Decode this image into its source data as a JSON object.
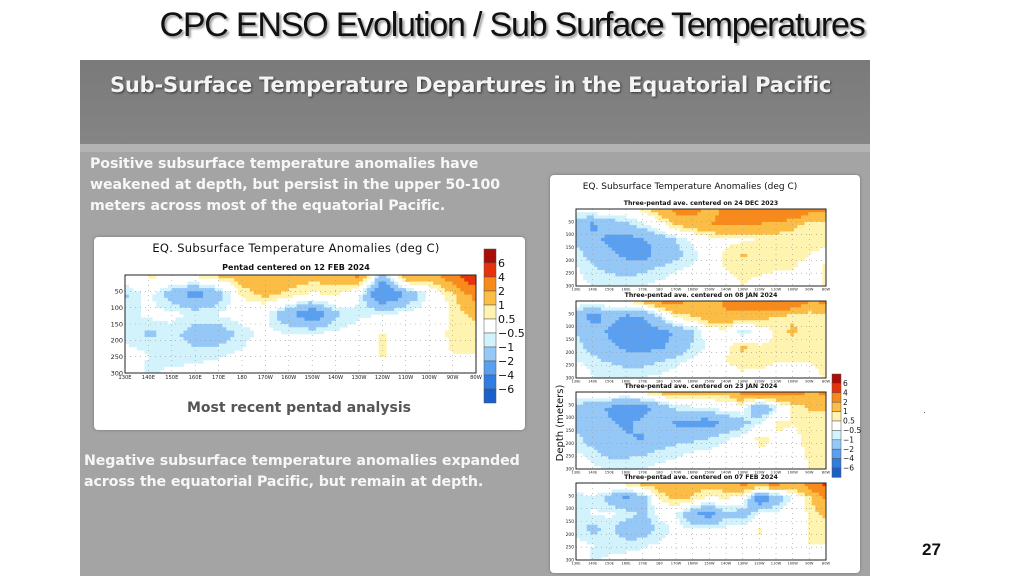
{
  "slide": {
    "title": "CPC ENSO Evolution / Sub Surface Temperatures",
    "page_number": "27"
  },
  "panel": {
    "title": "Sub-Surface Temperature Departures in the Equatorial Pacific",
    "text_top": "Positive subsurface temperature anomalies have weakened at depth, but persist in the upper 50-100 meters across most of the equatorial Pacific.",
    "text_bottom": "Negative subsurface temperature anomalies expanded across the equatorial Pacific, but remain at depth.",
    "main_caption": "Most recent pentad analysis"
  },
  "colors": {
    "panel_bg": "#a4a4a4",
    "header_bg": "#7f7f7f",
    "levels": [
      "#1c5fc9",
      "#2f7de0",
      "#5a9ff0",
      "#96c8f7",
      "#d2f3fb",
      "#ffffff",
      "#fff3b0",
      "#fbbd45",
      "#f78a1a",
      "#e8320c",
      "#a80d08"
    ]
  },
  "chart_data": [
    {
      "type": "heatmap",
      "title": "EQ. Subsurface Temperature Anomalies (deg C)",
      "subtitle": "Pentad centered on 12 FEB 2024",
      "xlabel": "",
      "ylabel": "",
      "x_ticks": [
        "130E",
        "140E",
        "150E",
        "160E",
        "170E",
        "180",
        "170W",
        "160W",
        "150W",
        "140W",
        "130W",
        "120W",
        "110W",
        "100W",
        "90W",
        "80W"
      ],
      "y_ticks": [
        "50",
        "100",
        "150",
        "200",
        "250",
        "300"
      ],
      "ylim": [
        300,
        0
      ],
      "legend": {
        "title": "deg C",
        "labels": [
          "6",
          "4",
          "2",
          "1",
          "0.5",
          "−0.5",
          "−1",
          "−2",
          "−4",
          "−6"
        ],
        "placement": "right"
      },
      "grid": true,
      "depths": [
        25,
        75,
        125,
        175,
        225,
        275
      ],
      "values": [
        [
          0.2,
          0.6,
          0.6,
          0.7,
          1.2,
          1.5,
          1.6,
          1.5,
          1.4,
          1.5,
          2.3,
          -1.5,
          2.2,
          1.5,
          3.0,
          6.5
        ],
        [
          -1.1,
          -0.3,
          -1.5,
          -2.5,
          -1.6,
          0.6,
          1.2,
          0.8,
          0.3,
          0.6,
          -0.4,
          -3.5,
          -2.0,
          -0.3,
          0.8,
          2.5
        ],
        [
          -0.8,
          -0.3,
          -0.3,
          -0.6,
          -0.4,
          -0.2,
          -0.4,
          -1.8,
          -3.0,
          -1.2,
          -0.6,
          -0.5,
          -0.2,
          -0.1,
          0.6,
          1.2
        ],
        [
          -0.6,
          -1.2,
          -0.7,
          -1.5,
          -1.6,
          -0.7,
          -0.3,
          -0.5,
          -0.4,
          -0.3,
          -0.2,
          0.6,
          -0.1,
          0.0,
          0.7,
          0.6
        ],
        [
          -0.3,
          -0.5,
          -0.7,
          -0.7,
          -0.6,
          -0.4,
          -0.2,
          -0.1,
          0.0,
          0.0,
          0.0,
          0.6,
          0.0,
          0.0,
          0.5,
          0.5
        ],
        [
          0.0,
          -0.6,
          -0.4,
          -0.3,
          -0.2,
          0.0,
          0.0,
          0.0,
          0.0,
          0.0,
          0.0,
          0.0,
          0.0,
          0.0,
          0.0,
          0.0
        ]
      ]
    },
    {
      "type": "heatmap",
      "title": "EQ. Subsurface Temperature Anomalies (deg C)",
      "ylabel": "Depth (meters)",
      "legend": {
        "labels": [
          "6",
          "4",
          "2",
          "1",
          "0.5",
          "−0.5",
          "−1",
          "−2",
          "−4",
          "−6"
        ],
        "placement": "right"
      },
      "x_ticks": [
        "130E",
        "140E",
        "150E",
        "160E",
        "170E",
        "180",
        "170W",
        "160W",
        "150W",
        "140W",
        "130W",
        "120W",
        "110W",
        "100W",
        "90W",
        "80W"
      ],
      "y_ticks": [
        "50",
        "100",
        "150",
        "200",
        "250",
        "300"
      ],
      "ylim": [
        300,
        0
      ],
      "depths": [
        25,
        75,
        125,
        175,
        225,
        275
      ],
      "panels": [
        {
          "subtitle": "Three-pentad ave. centered on 24 DEC 2023",
          "values": [
            [
              -0.2,
              0.2,
              0.3,
              0.4,
              0.7,
              1.5,
              2.4,
              2.5,
              1.5,
              2.3,
              2.5,
              3.0,
              4.2,
              3.5,
              2.5,
              2.2
            ],
            [
              -1.5,
              -2.2,
              -1.6,
              -1.3,
              -0.6,
              0.1,
              1.2,
              1.5,
              2.0,
              2.3,
              2.1,
              2.0,
              1.6,
              1.2,
              0.8,
              0.7
            ],
            [
              -1.1,
              -1.8,
              -2.2,
              -2.5,
              -2.1,
              -1.6,
              -1.0,
              -0.3,
              0.1,
              0.3,
              0.4,
              0.5,
              0.6,
              0.7,
              0.6,
              0.6
            ],
            [
              -0.7,
              -1.3,
              -1.8,
              -2.2,
              -2.5,
              -1.7,
              -1.2,
              -0.8,
              0.0,
              0.7,
              1.1,
              0.8,
              0.6,
              0.6,
              0.5,
              0.4
            ],
            [
              -0.4,
              -0.8,
              -1.1,
              -1.3,
              -1.1,
              -0.8,
              -0.5,
              -0.3,
              0.0,
              0.5,
              0.6,
              0.6,
              0.5,
              0.5,
              0.3,
              0.6
            ],
            [
              -0.3,
              -0.5,
              -0.5,
              -0.6,
              -0.5,
              -0.3,
              -0.2,
              0.0,
              0.0,
              0.3,
              0.5,
              0.3,
              0.2,
              0.1,
              0.0,
              0.6
            ]
          ]
        },
        {
          "subtitle": "Three-pentad ave. centered on 08 JAN 2024",
          "values": [
            [
              0.0,
              0.1,
              0.2,
              0.5,
              1.2,
              2.2,
              2.6,
              1.6,
              1.3,
              2.3,
              2.5,
              3.0,
              4.5,
              3.2,
              2.0,
              2.3
            ],
            [
              -1.5,
              -2.6,
              -1.6,
              -2.2,
              -2.1,
              -1.0,
              0.7,
              1.0,
              1.6,
              1.8,
              1.6,
              1.5,
              0.9,
              0.8,
              0.6,
              0.7
            ],
            [
              -1.0,
              -1.4,
              -2.2,
              -2.6,
              -2.4,
              -2.3,
              -1.9,
              -1.2,
              0.0,
              0.2,
              -1.0,
              0.0,
              0.6,
              1.2,
              0.6,
              0.6
            ],
            [
              -0.8,
              -1.2,
              -1.7,
              -2.3,
              -2.5,
              -2.1,
              -1.8,
              -0.9,
              -0.3,
              0.4,
              1.2,
              0.6,
              0.6,
              0.5,
              0.5,
              0.5
            ],
            [
              -0.4,
              -0.8,
              -1.0,
              -1.2,
              -1.2,
              -1.0,
              -0.6,
              -0.3,
              0.0,
              0.5,
              0.6,
              0.6,
              0.5,
              0.5,
              0.5,
              0.6
            ],
            [
              0.6,
              -0.5,
              -0.6,
              -0.6,
              -0.5,
              -0.3,
              -0.2,
              0.0,
              0.0,
              0.3,
              0.4,
              0.3,
              0.3,
              0.2,
              0.2,
              0.6
            ]
          ]
        },
        {
          "subtitle": "Three-pentad ave. centered on 23 JAN 2024",
          "values": [
            [
              0.2,
              0.6,
              0.3,
              0.4,
              0.6,
              1.3,
              1.5,
              1.4,
              1.4,
              1.3,
              2.4,
              2.6,
              3.0,
              2.6,
              2.0,
              2.2
            ],
            [
              -1.3,
              -1.8,
              -2.1,
              -2.6,
              -2.4,
              -1.7,
              -0.8,
              -0.6,
              -0.4,
              -0.1,
              0.0,
              -2.2,
              -0.8,
              0.6,
              1.1,
              1.2
            ],
            [
              -1.6,
              -1.3,
              -1.9,
              -2.2,
              -1.8,
              -1.4,
              -2.2,
              -2.4,
              -2.5,
              -1.8,
              -1.3,
              -0.6,
              0.6,
              0.5,
              0.6,
              0.6
            ],
            [
              -0.8,
              -1.4,
              -1.7,
              -1.9,
              -2.1,
              -1.6,
              -1.3,
              -1.2,
              -1.0,
              -0.6,
              -0.3,
              0.7,
              0.4,
              0.4,
              0.6,
              0.6
            ],
            [
              -0.4,
              -0.8,
              -1.2,
              -1.2,
              -1.1,
              -0.8,
              -0.6,
              -0.4,
              -0.3,
              -0.1,
              0.0,
              0.4,
              0.2,
              0.3,
              0.6,
              0.6
            ],
            [
              0.6,
              -0.4,
              -0.5,
              -0.5,
              -0.5,
              -0.3,
              -0.2,
              -0.1,
              0.0,
              0.0,
              0.0,
              0.0,
              0.0,
              0.2,
              0.5,
              0.6
            ]
          ]
        },
        {
          "subtitle": "Three-pentad ave. centered on 07 FEB 2024",
          "values": [
            [
              0.2,
              0.6,
              0.6,
              0.8,
              1.4,
              1.5,
              1.6,
              1.5,
              1.4,
              1.5,
              2.3,
              2.4,
              2.6,
              1.6,
              2.5,
              4.5
            ],
            [
              -1.0,
              -0.6,
              -1.4,
              -2.3,
              -1.6,
              0.6,
              1.3,
              0.9,
              0.2,
              0.6,
              0.0,
              -3.0,
              -1.8,
              -0.3,
              0.8,
              2.2
            ],
            [
              -0.8,
              -0.4,
              -0.4,
              -0.6,
              -1.3,
              -0.3,
              -0.4,
              -1.9,
              -2.6,
              -1.3,
              -1.4,
              -0.4,
              -0.2,
              0.0,
              0.6,
              1.2
            ],
            [
              -0.6,
              -1.3,
              -0.8,
              -1.6,
              -1.7,
              -0.8,
              -0.3,
              -0.5,
              -0.4,
              -0.3,
              -0.2,
              0.6,
              -0.1,
              0.0,
              0.6,
              0.6
            ],
            [
              -0.3,
              -0.5,
              -0.7,
              -0.7,
              -0.6,
              -0.4,
              -0.2,
              -0.1,
              0.0,
              0.0,
              0.0,
              0.3,
              0.0,
              0.0,
              0.5,
              0.5
            ],
            [
              0.0,
              -0.6,
              -0.4,
              -0.3,
              -0.2,
              0.0,
              0.0,
              0.0,
              0.0,
              0.0,
              0.0,
              0.0,
              0.0,
              0.0,
              0.0,
              0.0
            ]
          ]
        }
      ]
    }
  ]
}
